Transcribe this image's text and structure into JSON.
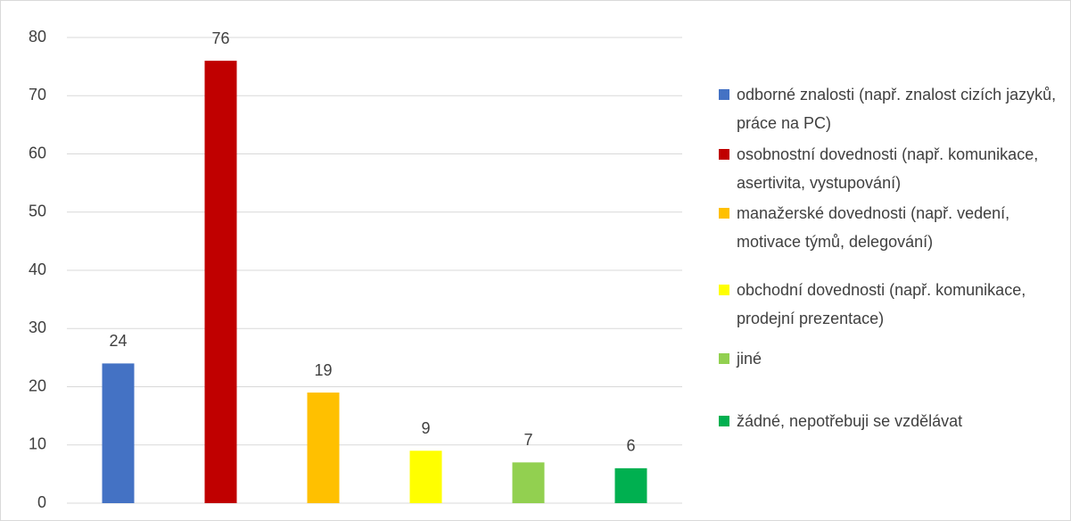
{
  "chart_data": {
    "type": "bar",
    "categories": [
      "odborné znalosti (např. znalost cizích jazyků, práce na PC)",
      "osobnostní dovednosti (např. komunikace, asertivita, vystupování)",
      "manažerské dovednosti (např. vedení, motivace týmů, delegování)",
      "obchodní dovednosti (např. komunikace, prodejní prezentace)",
      "jiné",
      "žádné, nepotřebuji se vzdělávat"
    ],
    "values": [
      24,
      76,
      19,
      9,
      7,
      6
    ],
    "colors": [
      "#4472c4",
      "#c00000",
      "#ffc000",
      "#ffff00",
      "#92d050",
      "#00b050"
    ],
    "ylim": [
      0,
      80
    ],
    "yticks": [
      0,
      10,
      20,
      30,
      40,
      50,
      60,
      70,
      80
    ],
    "grid": true,
    "legend": "right"
  }
}
